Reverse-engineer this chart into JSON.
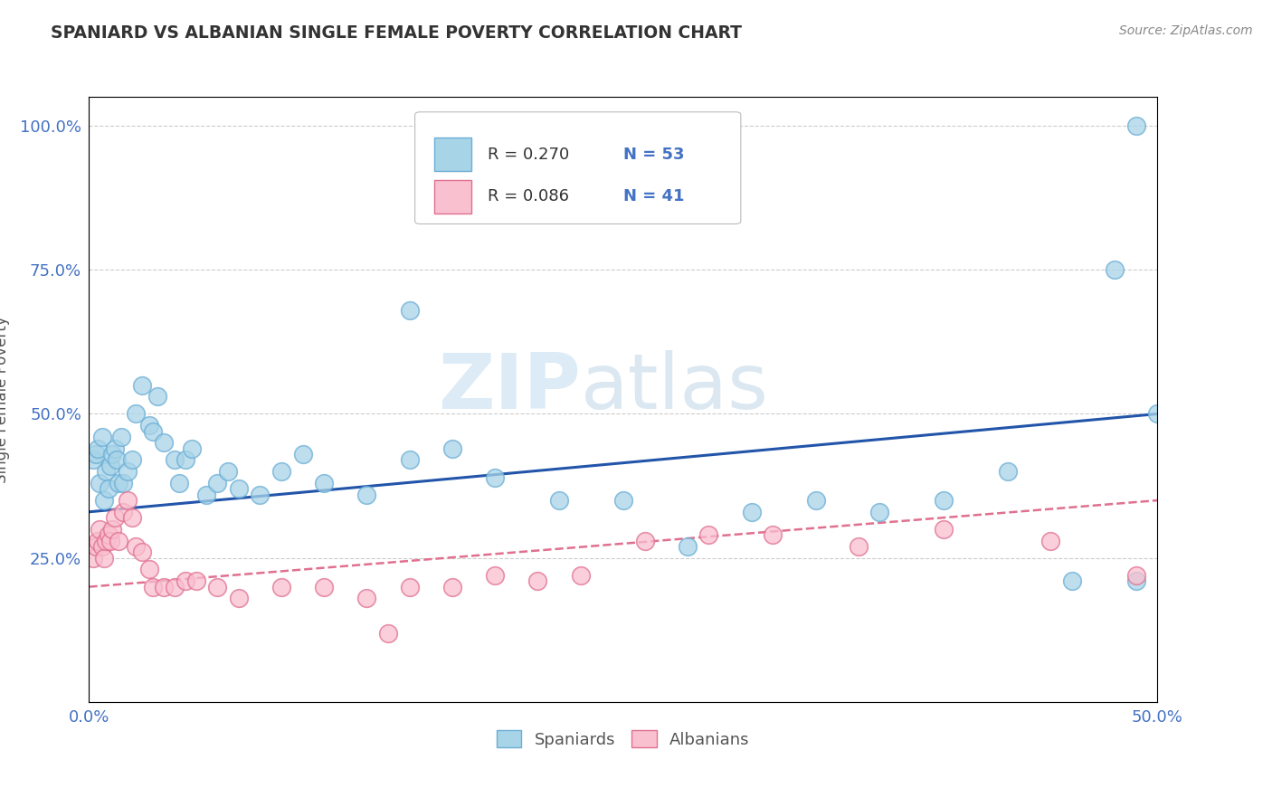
{
  "title": "SPANIARD VS ALBANIAN SINGLE FEMALE POVERTY CORRELATION CHART",
  "source": "Source: ZipAtlas.com",
  "x_min": 0.0,
  "x_max": 0.5,
  "y_min": 0.0,
  "y_max": 1.05,
  "spaniards_x": [
    0.002,
    0.003,
    0.004,
    0.005,
    0.006,
    0.007,
    0.008,
    0.009,
    0.01,
    0.011,
    0.012,
    0.013,
    0.014,
    0.015,
    0.016,
    0.018,
    0.02,
    0.022,
    0.025,
    0.028,
    0.03,
    0.032,
    0.035,
    0.04,
    0.042,
    0.045,
    0.048,
    0.055,
    0.06,
    0.065,
    0.07,
    0.08,
    0.09,
    0.1,
    0.11,
    0.13,
    0.15,
    0.17,
    0.19,
    0.22,
    0.25,
    0.28,
    0.31,
    0.34,
    0.37,
    0.4,
    0.43,
    0.46,
    0.49,
    0.48,
    0.5,
    0.49,
    0.15
  ],
  "spaniards_y": [
    0.42,
    0.43,
    0.44,
    0.38,
    0.46,
    0.35,
    0.4,
    0.37,
    0.41,
    0.43,
    0.44,
    0.42,
    0.38,
    0.46,
    0.38,
    0.4,
    0.42,
    0.5,
    0.55,
    0.48,
    0.47,
    0.53,
    0.45,
    0.42,
    0.38,
    0.42,
    0.44,
    0.36,
    0.38,
    0.4,
    0.37,
    0.36,
    0.4,
    0.43,
    0.38,
    0.36,
    0.42,
    0.44,
    0.39,
    0.35,
    0.35,
    0.27,
    0.33,
    0.35,
    0.33,
    0.35,
    0.4,
    0.21,
    0.21,
    0.75,
    0.5,
    1.0,
    0.68
  ],
  "albanians_x": [
    0.002,
    0.003,
    0.004,
    0.005,
    0.006,
    0.007,
    0.008,
    0.009,
    0.01,
    0.011,
    0.012,
    0.014,
    0.016,
    0.018,
    0.02,
    0.022,
    0.025,
    0.028,
    0.03,
    0.035,
    0.04,
    0.045,
    0.05,
    0.06,
    0.07,
    0.09,
    0.11,
    0.13,
    0.15,
    0.17,
    0.19,
    0.21,
    0.23,
    0.26,
    0.29,
    0.32,
    0.36,
    0.4,
    0.45,
    0.49,
    0.14
  ],
  "albanians_y": [
    0.25,
    0.27,
    0.28,
    0.3,
    0.27,
    0.25,
    0.28,
    0.29,
    0.28,
    0.3,
    0.32,
    0.28,
    0.33,
    0.35,
    0.32,
    0.27,
    0.26,
    0.23,
    0.2,
    0.2,
    0.2,
    0.21,
    0.21,
    0.2,
    0.18,
    0.2,
    0.2,
    0.18,
    0.2,
    0.2,
    0.22,
    0.21,
    0.22,
    0.28,
    0.29,
    0.29,
    0.27,
    0.3,
    0.28,
    0.22,
    0.12
  ],
  "spaniard_color": "#a8d4e8",
  "spaniard_edge_color": "#6baed6",
  "albanian_color": "#f9c0cf",
  "albanian_edge_color": "#e07090",
  "spaniard_line_color": "#2255aa",
  "albanian_line_color": "#e07090",
  "sp_trend_x0": 0.0,
  "sp_trend_y0": 0.33,
  "sp_trend_x1": 0.5,
  "sp_trend_y1": 0.5,
  "al_trend_x0": 0.0,
  "al_trend_y0": 0.2,
  "al_trend_x1": 0.5,
  "al_trend_y1": 0.35,
  "r_spaniard": "R = 0.270",
  "n_spaniard": "N = 53",
  "r_albanian": "R = 0.086",
  "n_albanian": "N = 41",
  "watermark_zip": "ZIP",
  "watermark_atlas": "atlas",
  "legend_spaniards": "Spaniards",
  "legend_albanians": "Albanians",
  "background_color": "#ffffff",
  "grid_color": "#cccccc",
  "tick_color": "#4472c4",
  "label_color": "#555555",
  "title_color": "#333333"
}
